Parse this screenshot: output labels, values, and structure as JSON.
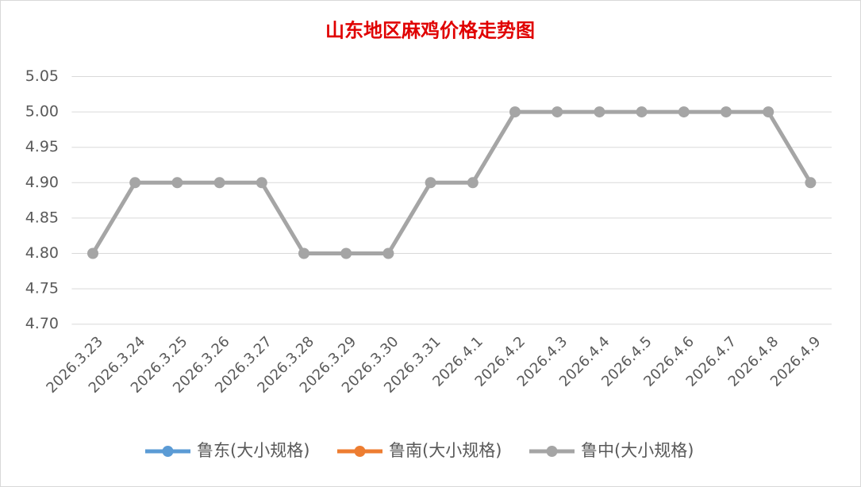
{
  "chart_data": {
    "type": "line",
    "title": "山东地区麻鸡价格走势图",
    "categories": [
      "2026.3.23",
      "2026.3.24",
      "2026.3.25",
      "2026.3.26",
      "2026.3.27",
      "2026.3.28",
      "2026.3.29",
      "2026.3.30",
      "2026.3.31",
      "2026.4.1",
      "2026.4.2",
      "2026.4.3",
      "2026.4.4",
      "2026.4.5",
      "2026.4.6",
      "2026.4.7",
      "2026.4.8",
      "2026.4.9"
    ],
    "series": [
      {
        "name": "鲁东(大小规格)",
        "color": "#5b9bd5",
        "values": [
          null,
          null,
          null,
          null,
          null,
          null,
          null,
          null,
          null,
          null,
          null,
          null,
          null,
          null,
          null,
          null,
          null,
          null
        ]
      },
      {
        "name": "鲁南(大小规格)",
        "color": "#ed7d31",
        "values": [
          null,
          null,
          null,
          null,
          null,
          null,
          null,
          null,
          null,
          null,
          null,
          null,
          null,
          null,
          null,
          null,
          null,
          null
        ]
      },
      {
        "name": "鲁中(大小规格)",
        "color": "#a5a5a5",
        "values": [
          4.8,
          4.9,
          4.9,
          4.9,
          4.9,
          4.8,
          4.8,
          4.8,
          4.9,
          4.9,
          5.0,
          5.0,
          5.0,
          5.0,
          5.0,
          5.0,
          5.0,
          4.9
        ]
      }
    ],
    "ylim": [
      4.7,
      5.05
    ],
    "yticks": [
      {
        "value": 4.7,
        "label": "4.70"
      },
      {
        "value": 4.75,
        "label": "4.75"
      },
      {
        "value": 4.8,
        "label": "4.80"
      },
      {
        "value": 4.85,
        "label": "4.85"
      },
      {
        "value": 4.9,
        "label": "4.90"
      },
      {
        "value": 4.95,
        "label": "4.95"
      },
      {
        "value": 5.0,
        "label": "5.00"
      },
      {
        "value": 5.05,
        "label": "5.05"
      }
    ],
    "grid": true,
    "legend": "bottom"
  }
}
